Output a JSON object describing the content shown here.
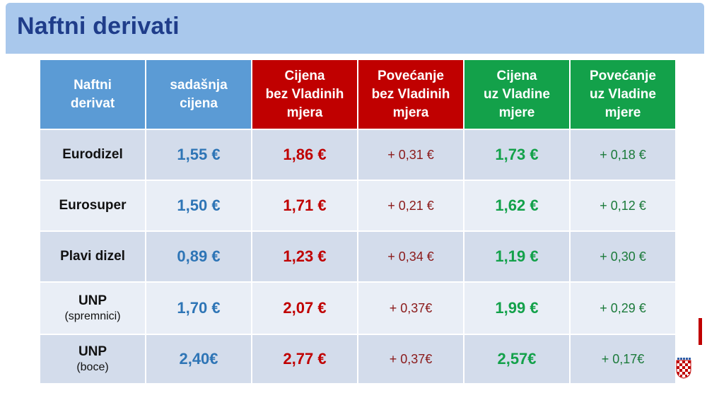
{
  "title": "Naftni derivati",
  "table": {
    "headers": [
      {
        "line1": "Naftni",
        "line2": "derivat",
        "line3": ""
      },
      {
        "line1": "sadašnja",
        "line2": "cijena",
        "line3": ""
      },
      {
        "line1": "Cijena",
        "line2": "bez Vladinih",
        "line3": "mjera"
      },
      {
        "line1": "Povećanje",
        "line2": "bez Vladinih",
        "line3": "mjera"
      },
      {
        "line1": "Cijena",
        "line2": "uz Vladine",
        "line3": "mjere"
      },
      {
        "line1": "Povećanje",
        "line2": "uz Vladine",
        "line3": "mjere"
      }
    ],
    "header_colors": [
      "#5b9bd5",
      "#5b9bd5",
      "#c00000",
      "#c00000",
      "#13a14a",
      "#13a14a"
    ],
    "rows": [
      {
        "product": "Eurodizel",
        "sub": "",
        "current": "1,55 €",
        "price_without": "1,86 €",
        "increase_without": "+ 0,31 €",
        "price_with": "1,73 €",
        "increase_with": "+ 0,18 €"
      },
      {
        "product": "Eurosuper",
        "sub": "",
        "current": "1,50 €",
        "price_without": "1,71 €",
        "increase_without": "+ 0,21 €",
        "price_with": "1,62 €",
        "increase_with": "+ 0,12 €"
      },
      {
        "product": "Plavi dizel",
        "sub": "",
        "current": "0,89 €",
        "price_without": "1,23 €",
        "increase_without": "+ 0,34 €",
        "price_with": "1,19 €",
        "increase_with": "+ 0,30 €"
      },
      {
        "product": "UNP",
        "sub": "(spremnici)",
        "current": "1,70 €",
        "price_without": "2,07 €",
        "increase_without": "+ 0,37€",
        "price_with": "1,99 €",
        "increase_with": "+ 0,29 €"
      },
      {
        "product": "UNP",
        "sub": "(boce)",
        "current": "2,40€",
        "price_without": "2,77 €",
        "increase_without": "+ 0,37€",
        "price_with": "2,57€",
        "increase_with": "+ 0,17€"
      }
    ]
  },
  "icons": {
    "coat_of_arms": "croatian-coat-of-arms-icon"
  }
}
